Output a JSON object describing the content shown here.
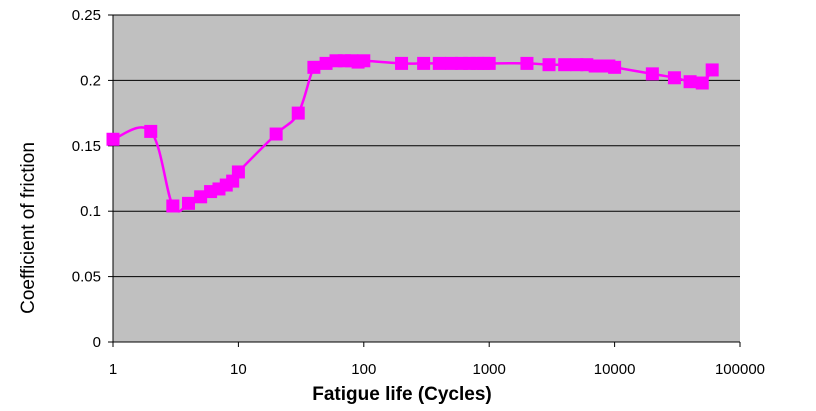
{
  "chart_data": {
    "type": "line",
    "title": "",
    "xlabel": "Fatigue life (Cycles)",
    "ylabel": "Coefficient of friction",
    "x_scale": "log",
    "xlim": [
      1,
      100000
    ],
    "ylim": [
      0,
      0.25
    ],
    "x_tick_labels": [
      "1",
      "10",
      "100",
      "1000",
      "10000",
      "100000"
    ],
    "y_tick_labels": [
      "0",
      "0.05",
      "0.1",
      "0.15",
      "0.2",
      "0.25"
    ],
    "grid": "horizontal",
    "legend": "none",
    "plot_background": "#c0c0c0",
    "series": [
      {
        "color": "#ff00ff",
        "marker": "square",
        "x": [
          1,
          2,
          3,
          4,
          5,
          6,
          7,
          8,
          9,
          10,
          20,
          30,
          40,
          50,
          60,
          70,
          80,
          90,
          100,
          200,
          300,
          400,
          500,
          600,
          700,
          800,
          900,
          1000,
          2000,
          3000,
          4000,
          5000,
          6000,
          7000,
          8000,
          9000,
          10000,
          20000,
          30000,
          40000,
          50000,
          60000
        ],
        "y": [
          0.155,
          0.161,
          0.104,
          0.106,
          0.111,
          0.115,
          0.117,
          0.12,
          0.123,
          0.13,
          0.159,
          0.175,
          0.21,
          0.213,
          0.215,
          0.215,
          0.215,
          0.214,
          0.215,
          0.213,
          0.213,
          0.213,
          0.213,
          0.213,
          0.213,
          0.213,
          0.213,
          0.213,
          0.213,
          0.212,
          0.212,
          0.212,
          0.212,
          0.211,
          0.211,
          0.211,
          0.21,
          0.205,
          0.202,
          0.199,
          0.198,
          0.208
        ]
      }
    ]
  }
}
